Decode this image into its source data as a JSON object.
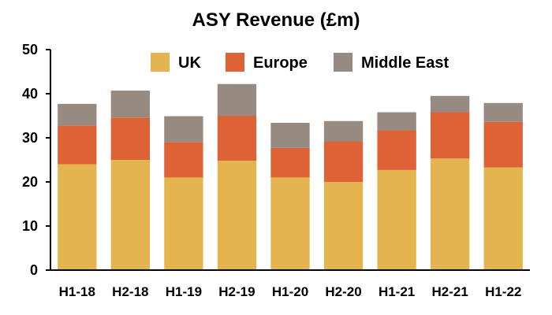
{
  "chart_data": {
    "type": "bar",
    "stacked": true,
    "title": "ASY Revenue (£m)",
    "xlabel": "",
    "ylabel": "",
    "categories": [
      "H1-18",
      "H2-18",
      "H1-19",
      "H2-19",
      "H1-20",
      "H2-20",
      "H1-21",
      "H2-21",
      "H1-22"
    ],
    "series": [
      {
        "name": "UK",
        "color": "#E4B54F",
        "values": [
          24.0,
          25.0,
          21.0,
          24.8,
          21.0,
          20.0,
          22.7,
          25.3,
          23.3
        ]
      },
      {
        "name": "Europe",
        "color": "#DD6337",
        "values": [
          8.8,
          9.6,
          8.0,
          10.2,
          6.7,
          9.2,
          9.0,
          10.5,
          10.3
        ]
      },
      {
        "name": "Middle East",
        "color": "#968A81",
        "values": [
          4.9,
          6.1,
          5.9,
          7.2,
          5.7,
          4.6,
          4.1,
          3.7,
          4.3
        ]
      }
    ],
    "ylim": [
      0,
      50
    ],
    "yticks": [
      "0",
      "10",
      "20",
      "30",
      "40",
      "50"
    ],
    "grid": false,
    "legend": "top"
  }
}
